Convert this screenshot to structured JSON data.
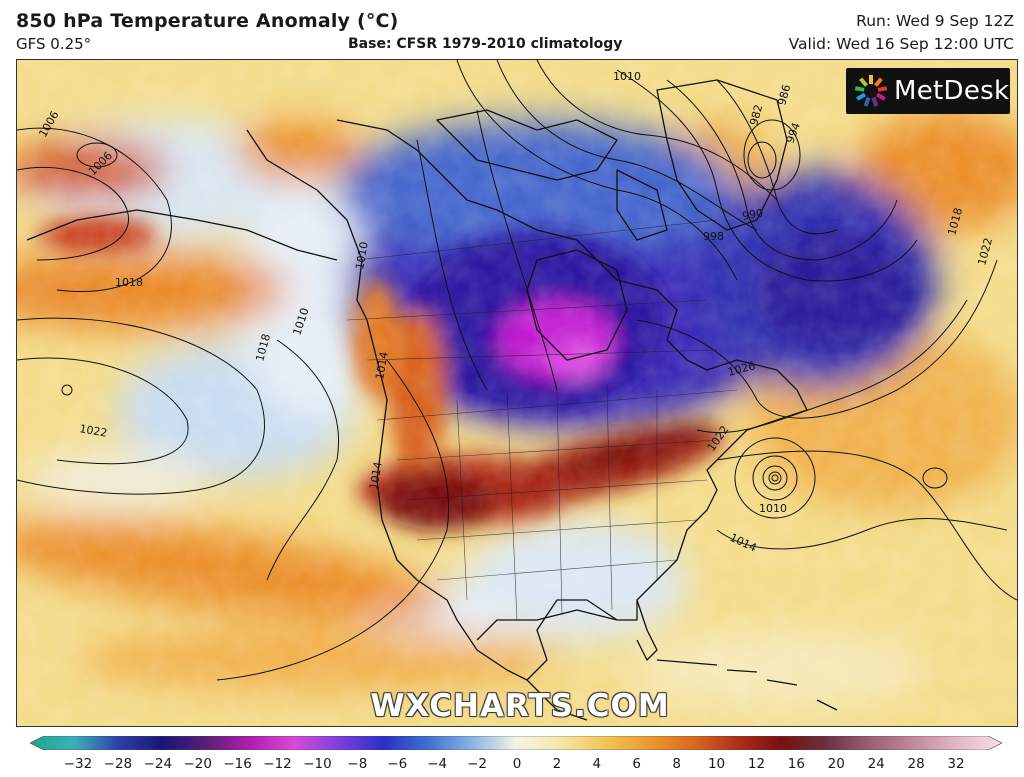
{
  "header": {
    "title": "850 hPa Temperature Anomaly (°C)",
    "model": "GFS 0.25°",
    "base": "Base: CFSR 1979-2010 climatology",
    "run": "Run: Wed 9 Sep 12Z",
    "valid": "Valid: Wed 16 Sep 12:00 UTC"
  },
  "brand": {
    "name": "MetDesk",
    "logo_icon": "starburst-logo-icon"
  },
  "watermark": "WXCHARTS.COM",
  "colors": {
    "very_cold": "#d81bd1",
    "cold": "#3a1fb8",
    "cool": "#3f6fd0",
    "slightly_cool": "#bcd4f0",
    "neutral": "#f4f0e0",
    "slightly_warm": "#f2d36a",
    "warm": "#ec8f2a",
    "hot": "#c5401a",
    "very_hot": "#7a1010",
    "ocean_base": "#f3dc8a"
  },
  "isobar_labels": [
    "1006",
    "1018",
    "1010",
    "1018",
    "1022",
    "1014",
    "1010",
    "1006",
    "998",
    "990",
    "994",
    "986",
    "982",
    "1010",
    "1018",
    "1022",
    "1026",
    "1022",
    "1010",
    "1014",
    "1014"
  ],
  "colorbar": {
    "ticks": [
      "−32",
      "−28",
      "−24",
      "−20",
      "−16",
      "−12",
      "−10",
      "−8",
      "−6",
      "−4",
      "−2",
      "0",
      "2",
      "4",
      "6",
      "8",
      "10",
      "12",
      "16",
      "20",
      "24",
      "28",
      "32"
    ],
    "stops": [
      "#1ea88a",
      "#3bb0b8",
      "#2f3fa8",
      "#1a1577",
      "#5a1f7a",
      "#b01fb0",
      "#d84ad8",
      "#7b3fe0",
      "#2a30c8",
      "#3f6fd0",
      "#8ab2e6",
      "#f6f3e6",
      "#f6e7a8",
      "#f1c55a",
      "#ec9a34",
      "#d96a22",
      "#b0301a",
      "#7a1010",
      "#6b3040",
      "#9a6070",
      "#c08a9a",
      "#e4b8c8",
      "#f6dfe6"
    ]
  }
}
